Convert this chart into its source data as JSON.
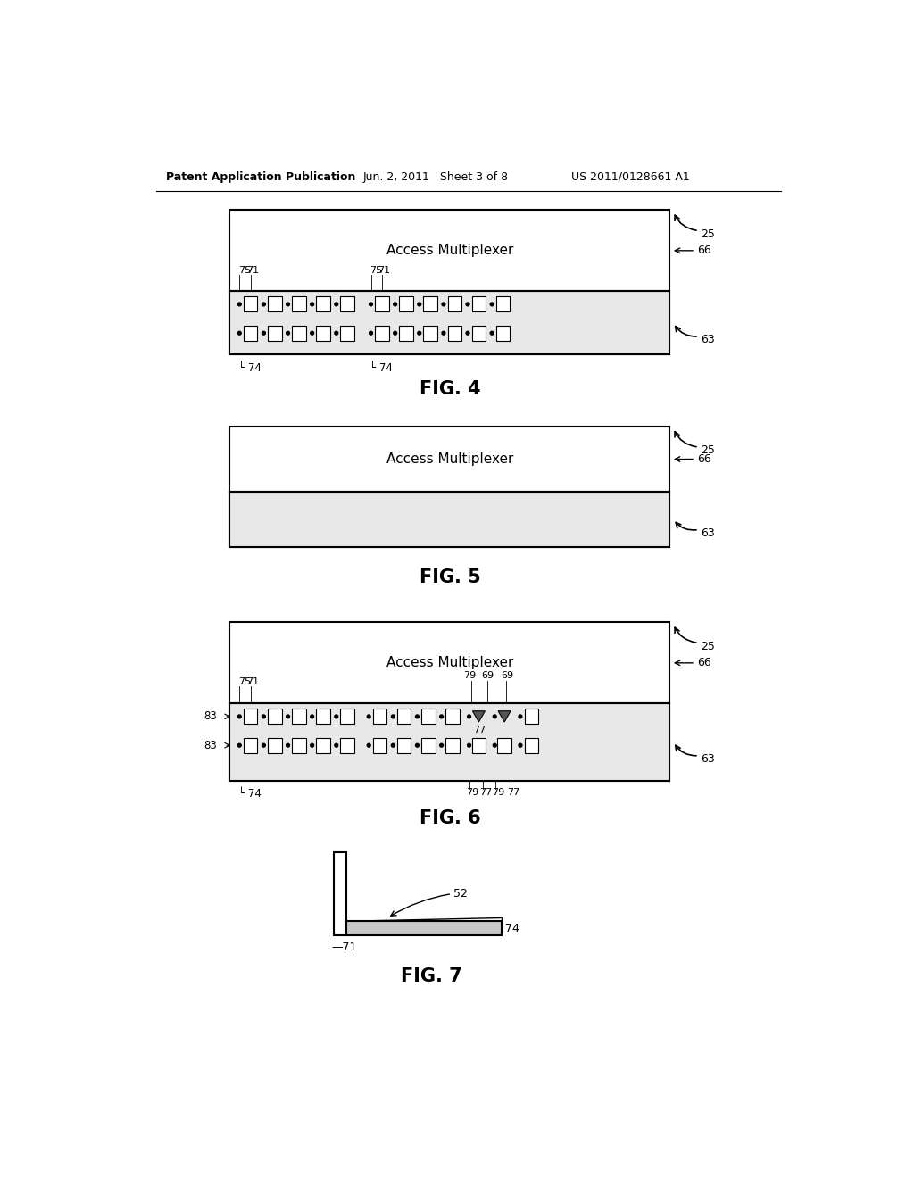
{
  "bg_color": "#ffffff",
  "header_left": "Patent Application Publication",
  "header_mid": "Jun. 2, 2011   Sheet 3 of 8",
  "header_right": "US 2011/0128661 A1",
  "fig4_label": "FIG. 4",
  "fig5_label": "FIG. 5",
  "fig6_label": "FIG. 6",
  "fig7_label": "FIG. 7",
  "mux_text": "Access Multiplexer"
}
